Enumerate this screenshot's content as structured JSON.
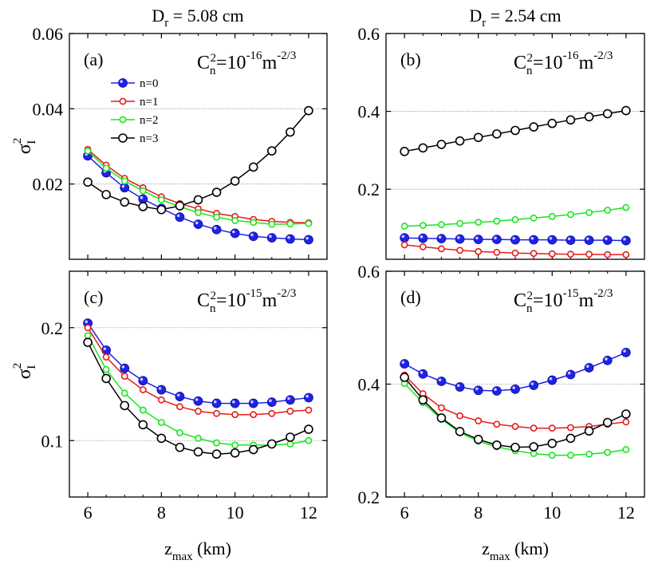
{
  "col_titles": [
    {
      "main": "D",
      "sub": "r",
      "rest": " = 5.08 cm"
    },
    {
      "main": "D",
      "sub": "r",
      "rest": " = 2.54 cm"
    }
  ],
  "y_axis_label": {
    "main": "σ",
    "sub": "I",
    "sup": "2"
  },
  "x_axis_label": {
    "main": "z",
    "sub": "max",
    "rest": " (km)"
  },
  "colors": {
    "n0": "#1f22e6",
    "n1": "#e81a1a",
    "n2": "#19e61e",
    "n3": "#000000",
    "grid": "#9a9a9a"
  },
  "chart_data": [
    {
      "type": "line",
      "panel": "(a)",
      "annotation": {
        "pre": "C",
        "sub": "n",
        "sup1": "2",
        "mid": "=10",
        "sup2": "-16",
        "post": "m",
        "sup3": "-2/3"
      },
      "legend": {
        "position": "top-left",
        "entries": [
          "n=0",
          "n=1",
          "n=2",
          "n=3"
        ]
      },
      "xlim": [
        5.5,
        12.5
      ],
      "ylim": [
        0,
        0.06
      ],
      "xticks": [
        "6",
        "8",
        "10",
        "12"
      ],
      "xtick_values": [
        6,
        8,
        10,
        12
      ],
      "yticks": [
        "0.02",
        "0.04",
        "0.06"
      ],
      "ytick_values": [
        0.02,
        0.04,
        0.06
      ],
      "grid_y": [
        0.02,
        0.04
      ],
      "x": [
        6,
        6.5,
        7,
        7.5,
        8,
        8.5,
        9,
        9.5,
        10,
        10.5,
        11,
        11.5,
        12
      ],
      "series": [
        {
          "name": "n=0",
          "values": [
            0.0275,
            0.023,
            0.019,
            0.016,
            0.0135,
            0.0112,
            0.0093,
            0.0079,
            0.0069,
            0.0061,
            0.0057,
            0.0054,
            0.0052
          ]
        },
        {
          "name": "n=1",
          "values": [
            0.0292,
            0.025,
            0.0215,
            0.019,
            0.0166,
            0.0148,
            0.0134,
            0.0122,
            0.0114,
            0.0106,
            0.0101,
            0.0098,
            0.0097
          ]
        },
        {
          "name": "n=2",
          "values": [
            0.0288,
            0.0242,
            0.0208,
            0.0182,
            0.0158,
            0.014,
            0.0124,
            0.0112,
            0.0103,
            0.0098,
            0.0093,
            0.0094,
            0.0095
          ]
        },
        {
          "name": "n=3",
          "values": [
            0.0205,
            0.0172,
            0.0152,
            0.014,
            0.0132,
            0.0142,
            0.0158,
            0.0178,
            0.0208,
            0.0245,
            0.0288,
            0.0338,
            0.0395
          ]
        }
      ]
    },
    {
      "type": "line",
      "panel": "(b)",
      "annotation": {
        "pre": "C",
        "sub": "n",
        "sup1": "2",
        "mid": "=10",
        "sup2": "-16",
        "post": "m",
        "sup3": "-2/3"
      },
      "xlim": [
        5.5,
        12.5
      ],
      "ylim": [
        0.02,
        0.6
      ],
      "xticks": [
        "6",
        "8",
        "10",
        "12"
      ],
      "xtick_values": [
        6,
        8,
        10,
        12
      ],
      "yticks": [
        "0.2",
        "0.4",
        "0.6"
      ],
      "ytick_values": [
        0.2,
        0.4,
        0.6
      ],
      "grid_y": [
        0.2,
        0.4
      ],
      "x": [
        6,
        6.5,
        7,
        7.5,
        8,
        8.5,
        9,
        9.5,
        10,
        10.5,
        11,
        11.5,
        12
      ],
      "series": [
        {
          "name": "n=0",
          "values": [
            0.075,
            0.074,
            0.073,
            0.072,
            0.071,
            0.071,
            0.07,
            0.07,
            0.07,
            0.069,
            0.069,
            0.069,
            0.068
          ]
        },
        {
          "name": "n=1",
          "values": [
            0.057,
            0.052,
            0.047,
            0.043,
            0.04,
            0.038,
            0.036,
            0.035,
            0.034,
            0.033,
            0.033,
            0.032,
            0.032
          ]
        },
        {
          "name": "n=2",
          "values": [
            0.105,
            0.107,
            0.109,
            0.112,
            0.115,
            0.118,
            0.122,
            0.126,
            0.13,
            0.135,
            0.14,
            0.146,
            0.153
          ]
        },
        {
          "name": "n=3",
          "values": [
            0.297,
            0.306,
            0.315,
            0.324,
            0.333,
            0.342,
            0.351,
            0.36,
            0.369,
            0.378,
            0.386,
            0.394,
            0.402
          ]
        }
      ]
    },
    {
      "type": "line",
      "panel": "(c)",
      "annotation": {
        "pre": "C",
        "sub": "n",
        "sup1": "2",
        "mid": "=10",
        "sup2": "-15",
        "post": "m",
        "sup3": "-2/3"
      },
      "xlim": [
        5.5,
        12.5
      ],
      "ylim": [
        0.05,
        0.25
      ],
      "xticks": [
        "6",
        "8",
        "10",
        "12"
      ],
      "xtick_values": [
        6,
        8,
        10,
        12
      ],
      "yticks": [
        "0.1",
        "0.2"
      ],
      "ytick_values": [
        0.1,
        0.2
      ],
      "grid_y": [
        0.1,
        0.2
      ],
      "x": [
        6,
        6.5,
        7,
        7.5,
        8,
        8.5,
        9,
        9.5,
        10,
        10.5,
        11,
        11.5,
        12
      ],
      "series": [
        {
          "name": "n=0",
          "values": [
            0.204,
            0.18,
            0.164,
            0.153,
            0.145,
            0.139,
            0.135,
            0.133,
            0.133,
            0.133,
            0.134,
            0.136,
            0.138
          ]
        },
        {
          "name": "n=1",
          "values": [
            0.2,
            0.174,
            0.157,
            0.145,
            0.136,
            0.13,
            0.126,
            0.124,
            0.123,
            0.123,
            0.124,
            0.126,
            0.127
          ]
        },
        {
          "name": "n=2",
          "values": [
            0.193,
            0.163,
            0.142,
            0.127,
            0.116,
            0.107,
            0.102,
            0.098,
            0.096,
            0.096,
            0.096,
            0.097,
            0.1
          ]
        },
        {
          "name": "n=3",
          "values": [
            0.187,
            0.155,
            0.131,
            0.114,
            0.102,
            0.094,
            0.09,
            0.088,
            0.089,
            0.092,
            0.097,
            0.103,
            0.11
          ]
        }
      ]
    },
    {
      "type": "line",
      "panel": "(d)",
      "annotation": {
        "pre": "C",
        "sub": "n",
        "sup1": "2",
        "mid": "=10",
        "sup2": "-15",
        "post": "m",
        "sup3": "-2/3"
      },
      "xlim": [
        5.5,
        12.5
      ],
      "ylim": [
        0.2,
        0.6
      ],
      "xticks": [
        "6",
        "8",
        "10",
        "12"
      ],
      "xtick_values": [
        6,
        8,
        10,
        12
      ],
      "yticks": [
        "0.2",
        "0.4",
        "0.6"
      ],
      "ytick_values": [
        0.2,
        0.4,
        0.6
      ],
      "grid_y": [
        0.4
      ],
      "x": [
        6,
        6.5,
        7,
        7.5,
        8,
        8.5,
        9,
        9.5,
        10,
        10.5,
        11,
        11.5,
        12
      ],
      "series": [
        {
          "name": "n=0",
          "values": [
            0.436,
            0.418,
            0.405,
            0.395,
            0.389,
            0.388,
            0.391,
            0.398,
            0.407,
            0.417,
            0.429,
            0.442,
            0.456
          ]
        },
        {
          "name": "n=1",
          "values": [
            0.416,
            0.383,
            0.358,
            0.344,
            0.335,
            0.329,
            0.325,
            0.322,
            0.322,
            0.323,
            0.325,
            0.329,
            0.333
          ]
        },
        {
          "name": "n=2",
          "values": [
            0.401,
            0.367,
            0.338,
            0.314,
            0.299,
            0.289,
            0.282,
            0.277,
            0.274,
            0.274,
            0.276,
            0.279,
            0.284
          ]
        },
        {
          "name": "n=3",
          "values": [
            0.412,
            0.372,
            0.34,
            0.316,
            0.302,
            0.292,
            0.288,
            0.289,
            0.295,
            0.304,
            0.317,
            0.332,
            0.347
          ]
        }
      ]
    }
  ]
}
